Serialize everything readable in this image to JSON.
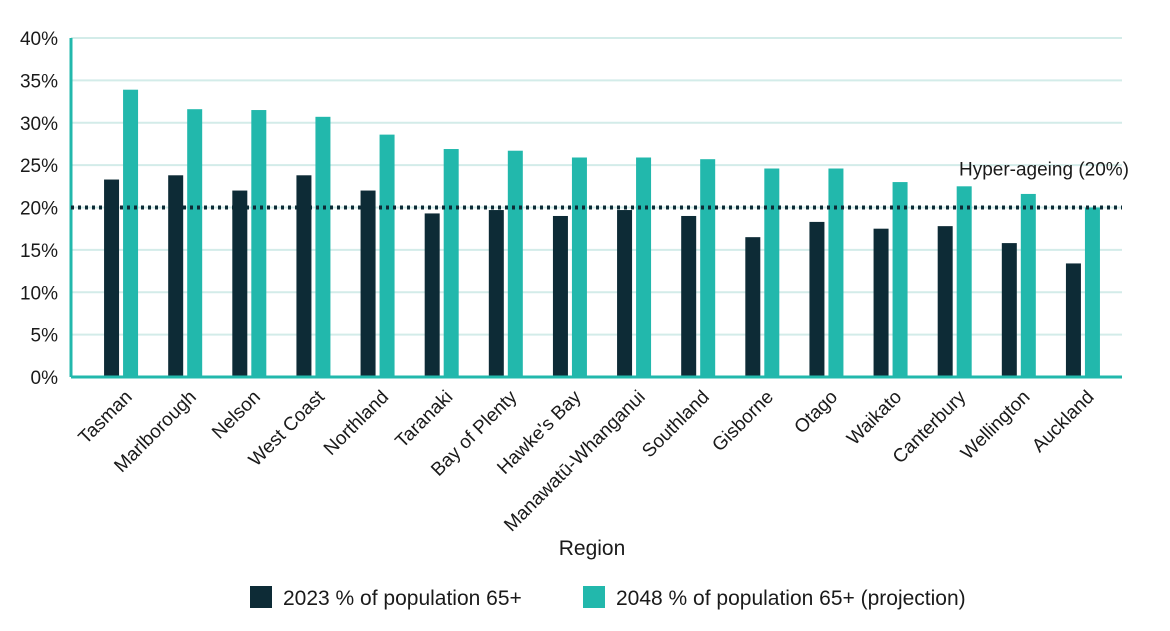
{
  "chart_data": {
    "type": "bar",
    "title": "",
    "xlabel": "Region",
    "ylabel": "",
    "ylim": [
      0,
      40
    ],
    "yticks": [
      "0%",
      "5%",
      "10%",
      "15%",
      "20%",
      "25%",
      "30%",
      "35%",
      "40%"
    ],
    "grid": true,
    "legend_position": "bottom",
    "categories": [
      "Tasman",
      "Marlborough",
      "Nelson",
      "West Coast",
      "Northland",
      "Taranaki",
      "Bay of Plenty",
      "Hawke's Bay",
      "Manawatū-Whanganui",
      "Southland",
      "Gisborne",
      "Otago",
      "Waikato",
      "Canterbury",
      "Wellington",
      "Auckland"
    ],
    "series": [
      {
        "name": "2023 % of population 65+",
        "color": "#0d2b36",
        "values": [
          23.3,
          23.8,
          22.0,
          23.8,
          22.0,
          19.3,
          19.7,
          19.0,
          19.7,
          19.0,
          16.5,
          18.3,
          17.5,
          17.8,
          15.8,
          13.4
        ]
      },
      {
        "name": "2048 % of population 65+ (projection)",
        "color": "#22b8ac",
        "values": [
          33.9,
          31.6,
          31.5,
          30.7,
          28.6,
          26.9,
          26.7,
          25.9,
          25.9,
          25.7,
          24.6,
          24.6,
          23.0,
          22.5,
          21.6,
          20.0
        ]
      }
    ],
    "reference_line": {
      "value": 20,
      "label": "Hyper-ageing (20%)"
    },
    "grid_color": "#d3ece9",
    "axis_color": "#22b8ac"
  }
}
